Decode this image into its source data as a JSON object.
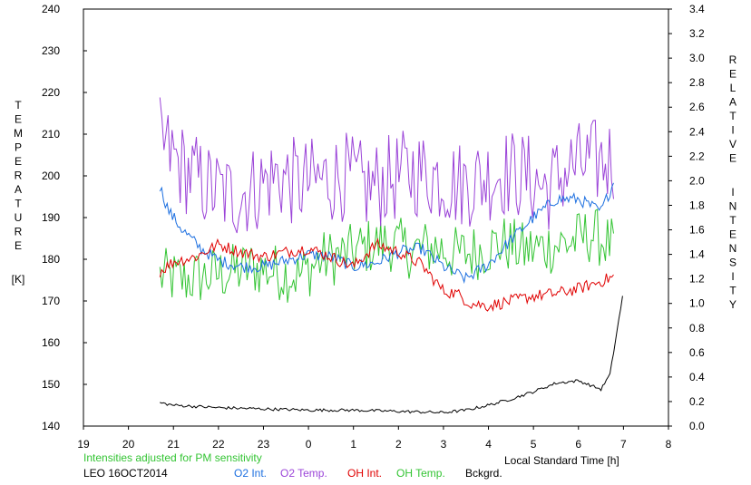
{
  "chart_data": {
    "type": "line",
    "ylabel_left_letters": [
      "T",
      "E",
      "M",
      "P",
      "E",
      "R",
      "A",
      "T",
      "U",
      "R",
      "E"
    ],
    "ylabel_left_unit": "[K]",
    "ylabel_right_letters": [
      "R",
      "E",
      "L",
      "A",
      "T",
      "I",
      "V",
      "E",
      "I",
      "N",
      "T",
      "E",
      "N",
      "S",
      "I",
      "T",
      "Y"
    ],
    "xlabel": "Local Standard Time [h]",
    "note": "Intensities adjusted for PM sensitivity",
    "station": "LEO 16OCT2014",
    "x_ticks": [
      "19",
      "20",
      "21",
      "22",
      "23",
      "0",
      "1",
      "2",
      "3",
      "4",
      "5",
      "6",
      "7",
      "8"
    ],
    "y_left_ticks": [
      "140",
      "150",
      "160",
      "170",
      "180",
      "190",
      "200",
      "210",
      "220",
      "230",
      "240"
    ],
    "y_right_ticks": [
      "0.0",
      "0.2",
      "0.4",
      "0.6",
      "0.8",
      "1.0",
      "1.2",
      "1.4",
      "1.6",
      "1.8",
      "2.0",
      "2.2",
      "2.4",
      "2.6",
      "2.8",
      "3.0",
      "3.2",
      "3.4"
    ],
    "ylim_left": [
      140,
      240
    ],
    "ylim_right": [
      0,
      3.4
    ],
    "xlim": [
      19,
      32
    ],
    "grid": false,
    "legend_placement": "bottom",
    "series": [
      {
        "name": "O2 Int.",
        "axis": "right",
        "color": "#1c6fe0"
      },
      {
        "name": "O2 Temp.",
        "axis": "left",
        "color": "#9b44d8"
      },
      {
        "name": "OH Int.",
        "axis": "right",
        "color": "#e00000"
      },
      {
        "name": "OH Temp.",
        "axis": "left",
        "color": "#33c433"
      },
      {
        "name": "Bckgrd.",
        "axis": "right",
        "color": "#000000"
      }
    ],
    "profiles": {
      "o2_temp": {
        "x": [
          20.7,
          21.2,
          21.8,
          22.3,
          22.8,
          23.3,
          23.8,
          24.3,
          24.8,
          25.3,
          25.8,
          26.3,
          26.8,
          27.3,
          27.8,
          28.3,
          28.8,
          29.3,
          29.8,
          30.3,
          30.8
        ],
        "y": [
          208,
          202,
          197,
          195,
          197,
          200,
          198,
          199,
          200,
          197,
          199,
          201,
          200,
          198,
          199,
          201,
          200,
          197,
          202,
          203,
          204
        ],
        "amp": 11
      },
      "oh_temp": {
        "x": [
          20.7,
          21.2,
          21.8,
          22.3,
          22.8,
          23.3,
          23.8,
          24.3,
          24.8,
          25.3,
          25.8,
          26.3,
          26.8,
          27.3,
          27.8,
          28.3,
          28.8,
          29.3,
          29.8,
          30.3,
          30.8
        ],
        "y": [
          176,
          175,
          176,
          177,
          178,
          177,
          176,
          180,
          181,
          183,
          184,
          182,
          183,
          181,
          182,
          184,
          182,
          183,
          184,
          186,
          183
        ],
        "amp": 7
      },
      "o2_int": {
        "x": [
          20.7,
          20.9,
          21.2,
          21.6,
          22.0,
          22.5,
          23.0,
          23.5,
          24.0,
          24.5,
          25.0,
          25.5,
          26.0,
          26.5,
          27.0,
          27.5,
          28.0,
          28.5,
          29.0,
          29.5,
          30.0,
          30.5,
          30.8
        ],
        "y": [
          1.95,
          1.75,
          1.6,
          1.45,
          1.35,
          1.3,
          1.3,
          1.35,
          1.4,
          1.38,
          1.3,
          1.33,
          1.42,
          1.45,
          1.3,
          1.2,
          1.32,
          1.52,
          1.7,
          1.85,
          1.85,
          1.75,
          2.0
        ],
        "amp": 0.05
      },
      "oh_int": {
        "x": [
          20.7,
          21.0,
          21.5,
          22.0,
          22.5,
          23.0,
          23.5,
          24.0,
          24.5,
          25.0,
          25.5,
          26.0,
          26.5,
          27.0,
          27.3,
          27.6,
          28.0,
          28.5,
          29.0,
          29.5,
          30.0,
          30.5,
          30.8
        ],
        "y": [
          1.26,
          1.34,
          1.38,
          1.48,
          1.42,
          1.38,
          1.42,
          1.45,
          1.38,
          1.3,
          1.48,
          1.42,
          1.32,
          1.1,
          1.08,
          1.0,
          0.98,
          1.02,
          1.06,
          1.08,
          1.12,
          1.18,
          1.22
        ],
        "amp": 0.05
      },
      "bckgrd": {
        "x": [
          20.7,
          21.0,
          22.0,
          23.0,
          24.0,
          25.0,
          26.0,
          27.0,
          27.5,
          28.0,
          28.5,
          29.0,
          29.5,
          30.0,
          30.5,
          30.7,
          31.0
        ],
        "y": [
          0.19,
          0.17,
          0.15,
          0.14,
          0.13,
          0.13,
          0.12,
          0.11,
          0.13,
          0.17,
          0.22,
          0.28,
          0.35,
          0.37,
          0.3,
          0.42,
          1.1
        ],
        "amp": 0.012
      }
    }
  }
}
